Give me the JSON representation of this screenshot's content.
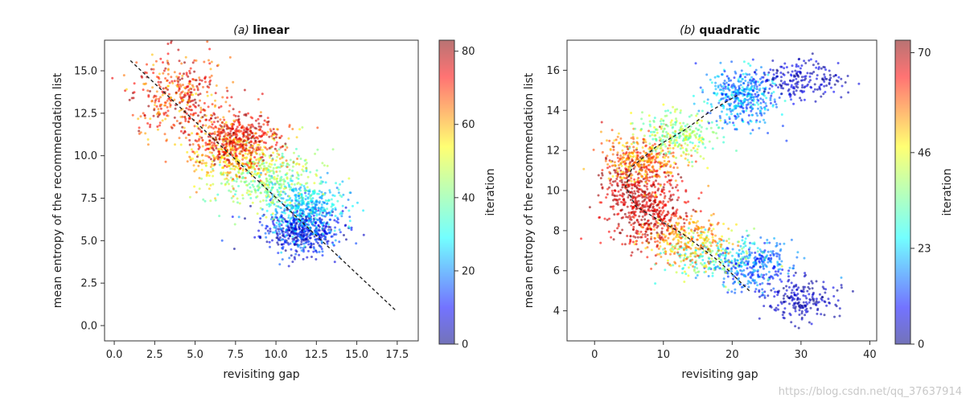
{
  "chart_data": [
    {
      "type": "scatter",
      "title_letter": "(a)",
      "title_word": "linear",
      "xlabel": "revisiting gap",
      "ylabel": "mean entropy of the recommendation list",
      "xlim": [
        -0.6,
        18.8
      ],
      "ylim": [
        -0.9,
        16.8
      ],
      "xticks": [
        "0.0",
        "2.5",
        "5.0",
        "7.5",
        "10.0",
        "12.5",
        "15.0",
        "17.5"
      ],
      "xtick_values": [
        0,
        2.5,
        5,
        7.5,
        10,
        12.5,
        15,
        17.5
      ],
      "yticks": [
        "0.0",
        "2.5",
        "5.0",
        "7.5",
        "10.0",
        "12.5",
        "15.0"
      ],
      "ytick_values": [
        0,
        2.5,
        5,
        7.5,
        10,
        12.5,
        15
      ],
      "colorbar": {
        "label": "iteration",
        "range": [
          0,
          83
        ],
        "ticks": [
          "0",
          "20",
          "40",
          "60",
          "80"
        ],
        "tick_values": [
          0,
          20,
          40,
          60,
          80
        ]
      },
      "trend_line": {
        "style": "dashed",
        "points": [
          [
            1.0,
            15.6
          ],
          [
            17.4,
            0.9
          ]
        ]
      },
      "clusters": [
        {
          "iteration_range": [
            0,
            20
          ],
          "center": [
            11.5,
            5.6
          ],
          "spread": [
            1.2,
            0.7
          ],
          "count": 520
        },
        {
          "iteration_range": [
            20,
            35
          ],
          "center": [
            11.8,
            7.0
          ],
          "spread": [
            1.3,
            0.8
          ],
          "count": 380
        },
        {
          "iteration_range": [
            35,
            50
          ],
          "center": [
            9.5,
            8.6
          ],
          "spread": [
            1.6,
            0.9
          ],
          "count": 360
        },
        {
          "iteration_range": [
            50,
            65
          ],
          "center": [
            7.5,
            10.0
          ],
          "spread": [
            1.6,
            0.9
          ],
          "count": 320
        },
        {
          "iteration_range": [
            65,
            83
          ],
          "center": [
            7.6,
            11.0
          ],
          "spread": [
            1.3,
            0.8
          ],
          "count": 420
        },
        {
          "iteration_range": [
            55,
            83
          ],
          "center": [
            4.0,
            13.5
          ],
          "spread": [
            1.4,
            1.2
          ],
          "count": 380
        }
      ]
    },
    {
      "type": "scatter",
      "title_letter": "(b)",
      "title_word": "quadratic",
      "xlabel": "revisiting gap",
      "ylabel": "mean entropy of the recommendation list",
      "xlim": [
        -4,
        41
      ],
      "ylim": [
        2.5,
        17.5
      ],
      "xticks": [
        "0",
        "10",
        "20",
        "30",
        "40"
      ],
      "xtick_values": [
        0,
        10,
        20,
        30,
        40
      ],
      "yticks": [
        "4",
        "6",
        "8",
        "10",
        "12",
        "14",
        "16"
      ],
      "ytick_values": [
        4,
        6,
        8,
        10,
        12,
        14,
        16
      ],
      "colorbar": {
        "label": "iteration",
        "range": [
          0,
          73
        ],
        "ticks": [
          "0",
          "23",
          "46",
          "70"
        ],
        "tick_values": [
          0,
          23,
          46,
          70
        ]
      },
      "trend_line": {
        "style": "dashed",
        "points": [
          [
            22.5,
            5.0
          ],
          [
            18,
            6.5
          ],
          [
            13,
            7.8
          ],
          [
            9,
            8.6
          ],
          [
            6,
            9.2
          ],
          [
            4.5,
            10.2
          ],
          [
            5.5,
            11.2
          ],
          [
            9,
            12.2
          ],
          [
            13,
            13.0
          ],
          [
            17,
            14.0
          ],
          [
            21,
            14.8
          ]
        ]
      },
      "clusters": [
        {
          "iteration_range": [
            0,
            8
          ],
          "center": [
            30,
            4.6
          ],
          "spread": [
            2.5,
            0.5
          ],
          "count": 200
        },
        {
          "iteration_range": [
            8,
            23
          ],
          "center": [
            23,
            6.2
          ],
          "spread": [
            3.0,
            0.6
          ],
          "count": 300
        },
        {
          "iteration_range": [
            23,
            46
          ],
          "center": [
            17,
            6.8
          ],
          "spread": [
            3.5,
            0.7
          ],
          "count": 220
        },
        {
          "iteration_range": [
            46,
            60
          ],
          "center": [
            13,
            7.5
          ],
          "spread": [
            3.0,
            0.6
          ],
          "count": 260
        },
        {
          "iteration_range": [
            60,
            73
          ],
          "center": [
            8,
            8.8
          ],
          "spread": [
            3.0,
            0.8
          ],
          "count": 320
        },
        {
          "iteration_range": [
            62,
            73
          ],
          "center": [
            6,
            10.2
          ],
          "spread": [
            2.5,
            0.9
          ],
          "count": 340
        },
        {
          "iteration_range": [
            46,
            62
          ],
          "center": [
            7,
            11.6
          ],
          "spread": [
            3.0,
            0.6
          ],
          "count": 300
        },
        {
          "iteration_range": [
            30,
            46
          ],
          "center": [
            12,
            12.8
          ],
          "spread": [
            3.0,
            0.6
          ],
          "count": 260
        },
        {
          "iteration_range": [
            10,
            30
          ],
          "center": [
            21.5,
            14.6
          ],
          "spread": [
            2.5,
            0.7
          ],
          "count": 420
        },
        {
          "iteration_range": [
            0,
            10
          ],
          "center": [
            30,
            15.6
          ],
          "spread": [
            3.0,
            0.5
          ],
          "count": 200
        }
      ]
    }
  ],
  "watermark": "https://blog.csdn.net/qq_37637914"
}
